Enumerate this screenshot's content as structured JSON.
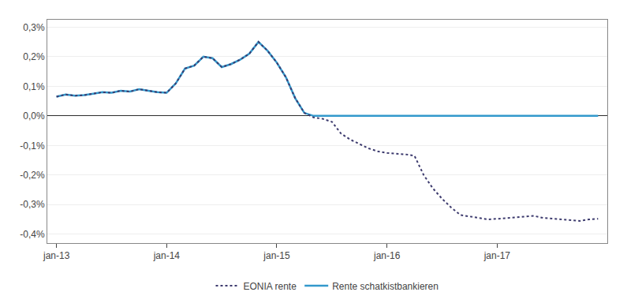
{
  "chart_data": {
    "type": "line",
    "x": [
      0,
      1,
      2,
      3,
      4,
      5,
      6,
      7,
      8,
      9,
      10,
      11,
      12,
      13,
      14,
      15,
      16,
      17,
      18,
      19,
      20,
      21,
      22,
      23,
      24,
      25,
      26,
      27,
      28,
      29,
      30,
      31,
      32,
      33,
      34,
      35,
      36,
      37,
      38,
      39,
      40,
      41,
      42,
      43,
      44,
      45,
      46,
      47,
      48,
      49,
      50,
      51,
      52,
      53,
      54,
      55,
      56,
      57,
      58,
      59
    ],
    "series": [
      {
        "name": "EONIA rente",
        "color": "#3d3b6e",
        "line_style": "dotted",
        "values": [
          0.00065,
          0.00072,
          0.00068,
          0.0007,
          0.00075,
          0.0008,
          0.00078,
          0.00085,
          0.00082,
          0.0009,
          0.00085,
          0.0008,
          0.00078,
          0.0011,
          0.0016,
          0.0017,
          0.002,
          0.00195,
          0.00165,
          0.00175,
          0.0019,
          0.0021,
          0.0025,
          0.0022,
          0.0018,
          0.0013,
          0.0006,
          0.0001,
          -5e-05,
          -0.0001,
          -0.0002,
          -0.0006,
          -0.0008,
          -0.00095,
          -0.0011,
          -0.0012,
          -0.00125,
          -0.00128,
          -0.0013,
          -0.00135,
          -0.002,
          -0.00245,
          -0.0028,
          -0.0031,
          -0.00335,
          -0.0034,
          -0.00345,
          -0.0035,
          -0.00348,
          -0.00345,
          -0.00342,
          -0.0034,
          -0.00338,
          -0.00345,
          -0.00348,
          -0.0035,
          -0.00352,
          -0.00355,
          -0.0035,
          -0.00348
        ]
      },
      {
        "name": "Rente schatkistbankieren",
        "color": "#3399cc",
        "line_style": "solid",
        "values": [
          0.00065,
          0.00072,
          0.00068,
          0.0007,
          0.00075,
          0.0008,
          0.00078,
          0.00085,
          0.00082,
          0.0009,
          0.00085,
          0.0008,
          0.00078,
          0.0011,
          0.0016,
          0.0017,
          0.002,
          0.00195,
          0.00165,
          0.00175,
          0.0019,
          0.0021,
          0.0025,
          0.0022,
          0.0018,
          0.0013,
          0.0006,
          0.0001,
          0.0,
          0.0,
          0.0,
          0.0,
          0.0,
          0.0,
          0.0,
          0.0,
          0.0,
          0.0,
          0.0,
          0.0,
          0.0,
          0.0,
          0.0,
          0.0,
          0.0,
          0.0,
          0.0,
          0.0,
          0.0,
          0.0,
          0.0,
          0.0,
          0.0,
          0.0,
          0.0,
          0.0,
          0.0,
          0.0,
          0.0,
          0.0
        ]
      }
    ],
    "xlim": [
      -1,
      60
    ],
    "xticks": [
      {
        "value": 0,
        "label": "jan-13"
      },
      {
        "value": 12,
        "label": "jan-14"
      },
      {
        "value": 24,
        "label": "jan-15"
      },
      {
        "value": 36,
        "label": "jan-16"
      },
      {
        "value": 48,
        "label": "jan-17"
      }
    ],
    "ylim": [
      -0.0043,
      0.00325
    ],
    "yticks": [
      {
        "value": -0.004,
        "label": "-0,4%"
      },
      {
        "value": -0.003,
        "label": "-0,3%"
      },
      {
        "value": -0.002,
        "label": "-0,2%"
      },
      {
        "value": -0.001,
        "label": "-0,1%"
      },
      {
        "value": 0.0,
        "label": "0,0%"
      },
      {
        "value": 0.001,
        "label": "0,1%"
      },
      {
        "value": 0.002,
        "label": "0,2%"
      },
      {
        "value": 0.003,
        "label": "0,3%"
      }
    ],
    "grid": true,
    "legend": "bottom"
  }
}
